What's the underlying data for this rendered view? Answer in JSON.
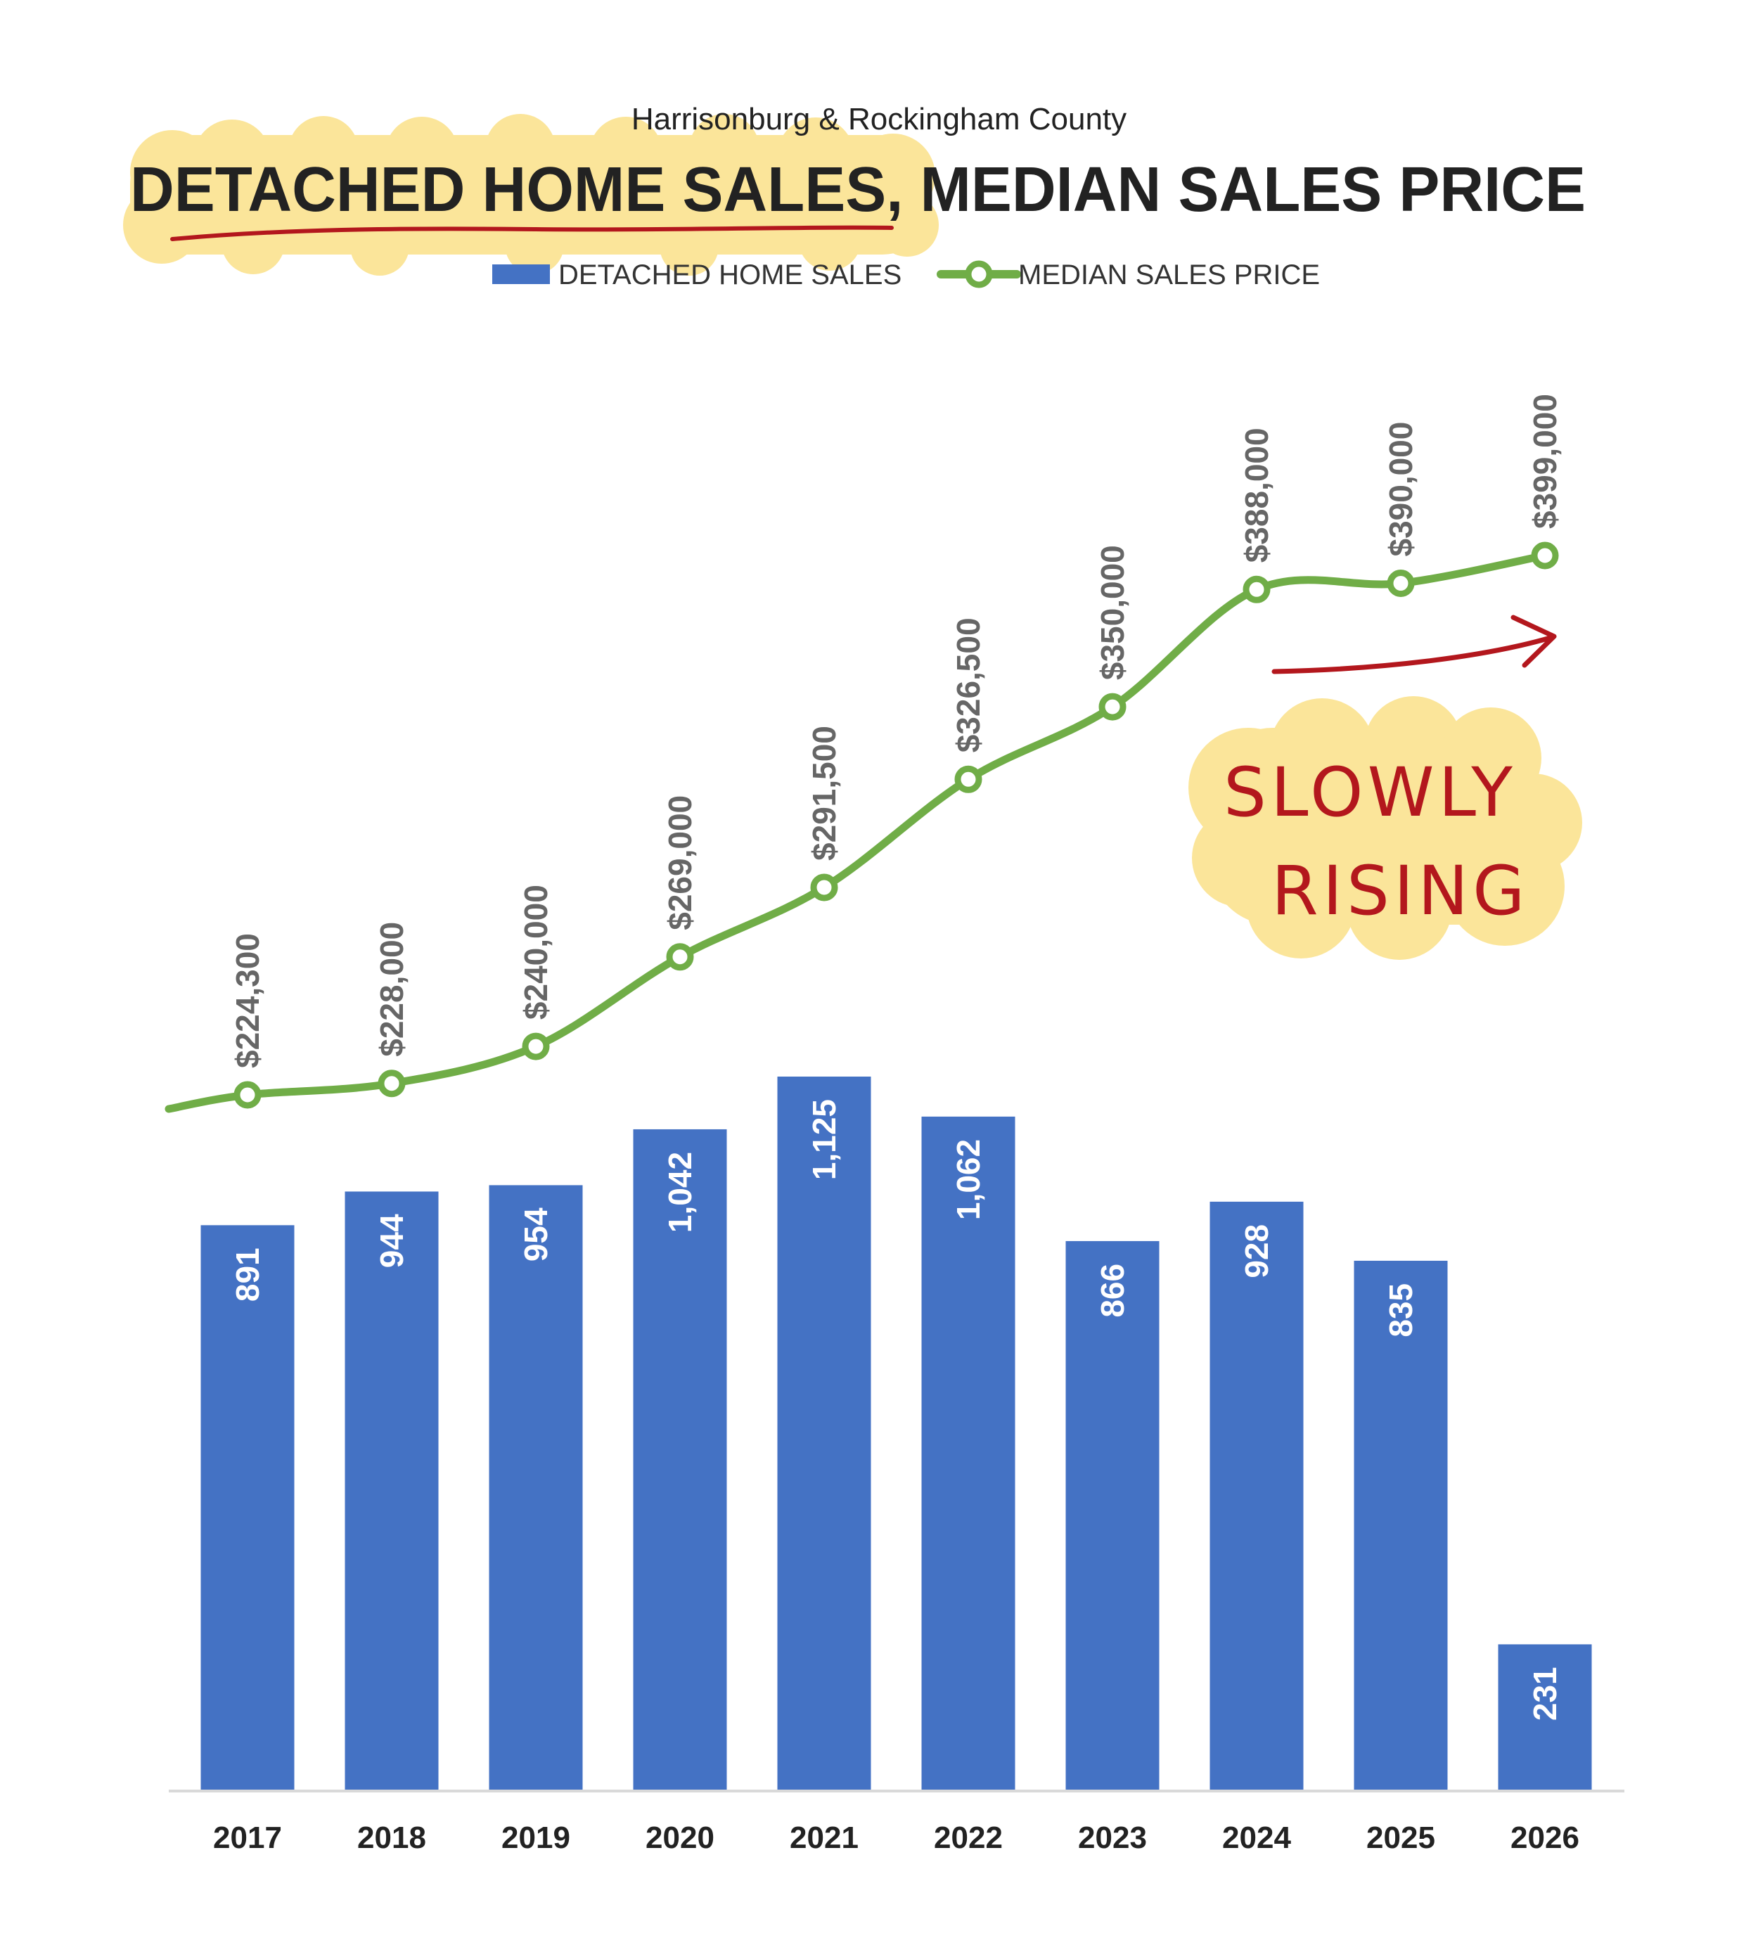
{
  "header": {
    "subtitle": "Harrisonburg & Rockingham County",
    "title_part1": "DETACHED HOME SALES",
    "title_part2": ", MEDIAN SALES PRICE"
  },
  "legend": {
    "bars_label": "DETACHED HOME SALES",
    "line_label": "MEDIAN SALES PRICE"
  },
  "annotation": {
    "line1": "SLOWLY",
    "line2": "RISING"
  },
  "colors": {
    "bar": "#4472c4",
    "line": "#70ad47",
    "highlight": "#fbe59a",
    "ink": "#b3171d"
  },
  "chart_data": {
    "type": "bar",
    "title": "DETACHED HOME SALES, MEDIAN SALES PRICE",
    "subtitle": "Harrisonburg & Rockingham County",
    "categories": [
      "2017",
      "2018",
      "2019",
      "2020",
      "2021",
      "2022",
      "2023",
      "2024",
      "2025",
      "2026"
    ],
    "series": [
      {
        "name": "DETACHED HOME SALES",
        "type": "bar",
        "values": [
          891,
          944,
          954,
          1042,
          1125,
          1062,
          866,
          928,
          835,
          231
        ],
        "labels": [
          "891",
          "944",
          "954",
          "1,042",
          "1,125",
          "1,062",
          "866",
          "928",
          "835",
          "231"
        ]
      },
      {
        "name": "MEDIAN SALES PRICE",
        "type": "line",
        "values": [
          224300,
          228000,
          240000,
          269000,
          291500,
          326500,
          350000,
          388000,
          390000,
          399000
        ],
        "labels": [
          "$224,300",
          "$228,000",
          "$240,000",
          "$269,000",
          "$291,500",
          "$326,500",
          "$350,000",
          "$388,000",
          "$390,000",
          "$399,000"
        ]
      }
    ],
    "bar_axis_range": [
      0,
      1125
    ],
    "line_axis_range": [
      224300,
      399000
    ],
    "legend_position": "top-center",
    "grid": false
  }
}
